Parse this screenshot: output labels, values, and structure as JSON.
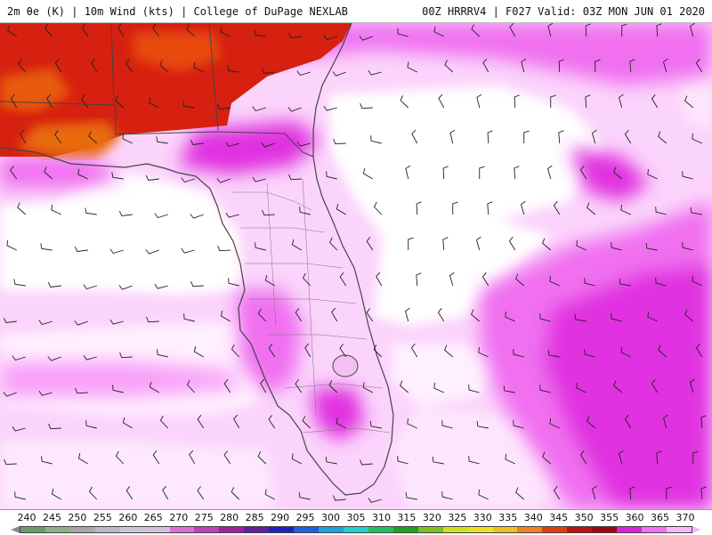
{
  "header": {
    "left_text": "2m θe (K) | 10m Wind (kts) | College of DuPage NEXLAB",
    "right_text": "00Z HRRRV4 | F027 Valid: 03Z MON JUN 01 2020"
  },
  "map": {
    "field": "2m theta-e",
    "overlay": "10m wind barbs",
    "region": "Florida and southeastern United States",
    "colors": {
      "hot": "#d62010",
      "orange": "#e86a10",
      "magenta": "#e020e0",
      "pink": "#f070f0",
      "light_pink": "#f8b8f8",
      "pale": "#fde0fd",
      "land_outline": "#444444",
      "barb": "#222222"
    }
  },
  "legend": {
    "ticks": [
      "240",
      "245",
      "250",
      "255",
      "260",
      "265",
      "270",
      "275",
      "280",
      "285",
      "290",
      "295",
      "300",
      "305",
      "310",
      "315",
      "320",
      "325",
      "330",
      "335",
      "340",
      "345",
      "350",
      "355",
      "360",
      "365",
      "370"
    ],
    "colors": [
      "#6f9a6f",
      "#8fb08f",
      "#a8a8a8",
      "#b8b8c8",
      "#c8c8d8",
      "#d8c0e0",
      "#d870d8",
      "#c040c0",
      "#a020a0",
      "#6020a0",
      "#2020c0",
      "#2060e0",
      "#20a0e0",
      "#20d0d0",
      "#20c060",
      "#20a020",
      "#80c020",
      "#d0e020",
      "#f0e020",
      "#f0c020",
      "#f08020",
      "#e04010",
      "#c01010",
      "#a00810",
      "#e020e0",
      "#f070f0",
      "#f8b8f8"
    ]
  }
}
